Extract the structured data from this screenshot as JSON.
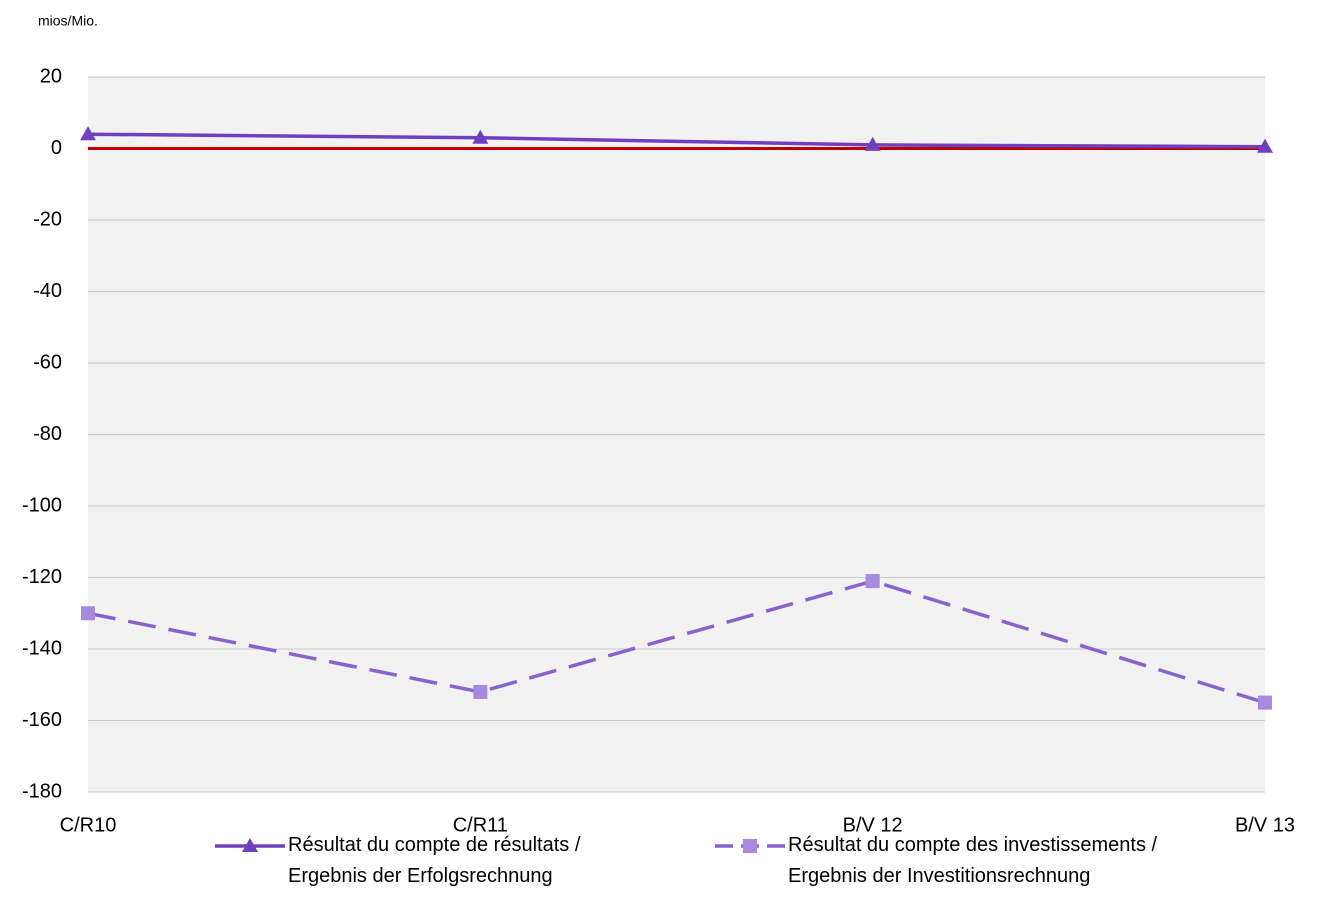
{
  "chart_data": {
    "type": "line",
    "unit_label": "mios/Mio.",
    "categories": [
      "C/R10",
      "C/R11",
      "B/V 12",
      "B/V 13"
    ],
    "series": [
      {
        "name": "Résultat du compte de résultats /\nErgebnis der Erfolgsrechnung",
        "color": "#6f3fc0",
        "marker": "triangle",
        "dashed": false,
        "values": [
          4,
          3,
          1,
          0.5
        ]
      },
      {
        "name": "Résultat du compte des investissements /\nErgebnis der Investitionsrechnung",
        "color": "#8a62d0",
        "marker_color": "#a68ade",
        "marker": "square",
        "dashed": true,
        "values": [
          -130,
          -152,
          -121,
          -155
        ]
      }
    ],
    "ylim": [
      -180,
      20
    ],
    "yticks": [
      -180,
      -160,
      -140,
      -120,
      -100,
      -80,
      -60,
      -40,
      -20,
      0,
      20
    ],
    "grid": true,
    "plot_background": "#f2f2f2",
    "zero_line_color": "#c00000",
    "legend": "bottom"
  }
}
